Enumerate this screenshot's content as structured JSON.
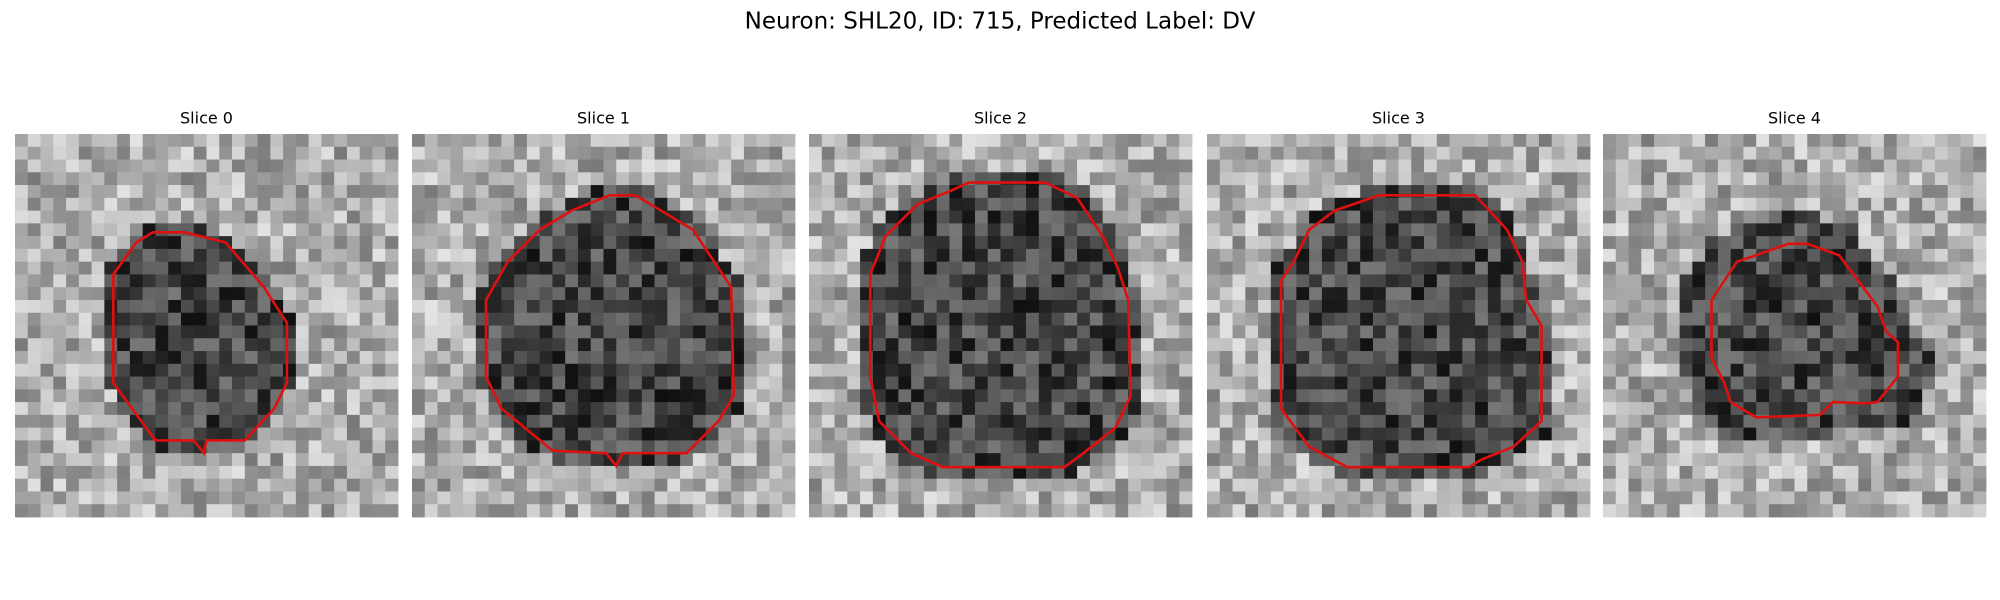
{
  "figure": {
    "title": "Neuron: SHL20, ID: 715, Predicted Label: DV",
    "panels": [
      {
        "title": "Slice 0"
      },
      {
        "title": "Slice 1"
      },
      {
        "title": "Slice 2"
      },
      {
        "title": "Slice 3"
      },
      {
        "title": "Slice 4"
      }
    ]
  }
}
